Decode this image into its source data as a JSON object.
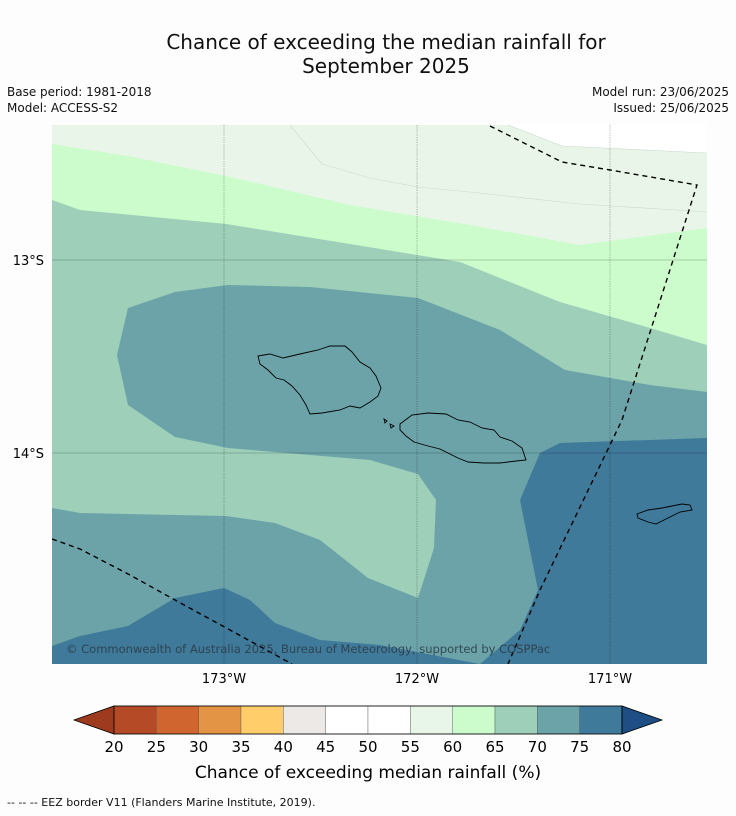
{
  "title_line1": "Chance of exceeding the median rainfall for",
  "title_line2": "September 2025",
  "base_period": "Base period: 1981-2018",
  "model": "Model: ACCESS-S2",
  "model_run": "Model run: 23/06/2025",
  "issued": "Issued: 25/06/2025",
  "latitude_labels": [
    "13°S",
    "14°S"
  ],
  "longitude_labels": [
    "173°W",
    "172°W",
    "171°W"
  ],
  "copyright": "© Commonwealth of Australia 2025, Bureau of Meteorology, supported by COSPPac",
  "colorbar": {
    "ticks": [
      "20",
      "25",
      "30",
      "35",
      "40",
      "45",
      "50",
      "55",
      "60",
      "65",
      "70",
      "75",
      "80"
    ],
    "colors": [
      "#b54a26",
      "#d0652f",
      "#e39444",
      "#ffce6b",
      "#ece9e6",
      "#ffffff",
      "#ffffff",
      "#e8f5e9",
      "#ccfccc",
      "#9dcfb9",
      "#6ba3a8",
      "#407a9a"
    ],
    "under_color": "#9e3a1e",
    "over_color": "#1f4e85",
    "label": "Chance of exceeding median rainfall (%)"
  },
  "footer": "--  --  -- EEZ border V11 (Flanders Marine Institute, 2019)."
}
